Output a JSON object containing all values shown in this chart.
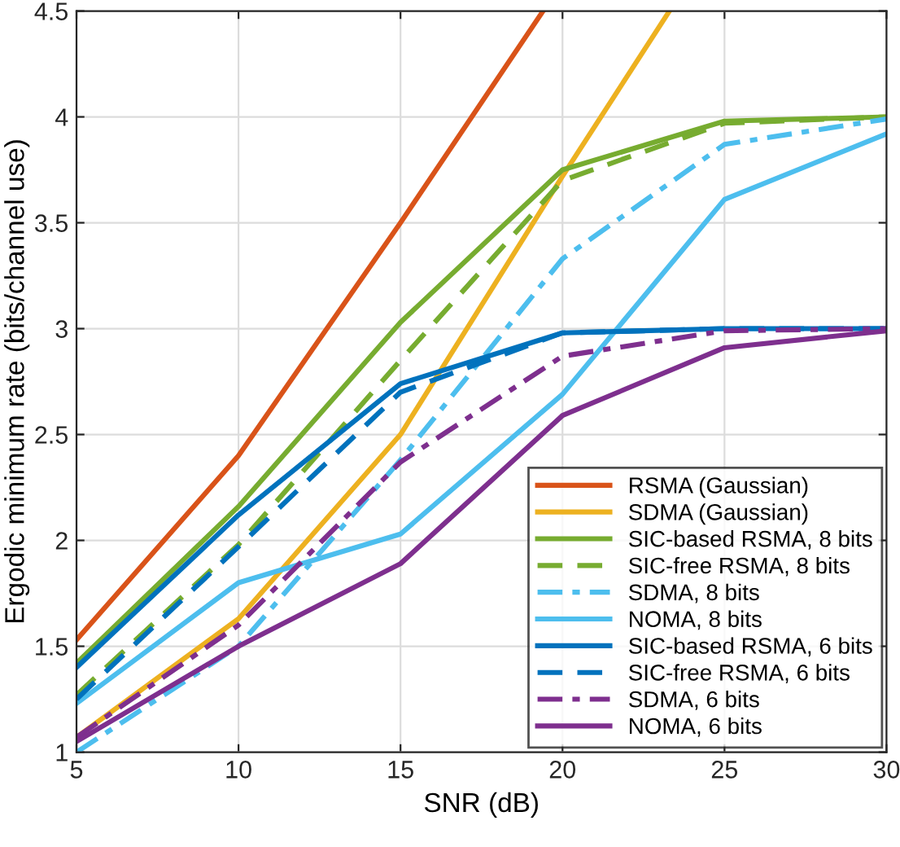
{
  "chart_data": {
    "type": "line",
    "xlabel": "SNR (dB)",
    "ylabel": "Ergodic minimum rate (bits/channel use)",
    "x": [
      5,
      10,
      15,
      20,
      25,
      30
    ],
    "xlim": [
      5,
      30
    ],
    "ylim": [
      1,
      4.5
    ],
    "xticks": [
      5,
      10,
      15,
      20,
      25,
      30
    ],
    "yticks": [
      1,
      1.5,
      2,
      2.5,
      3,
      3.5,
      4,
      4.5
    ],
    "grid": true,
    "legend": "bottom right",
    "marker": "none",
    "series": [
      {
        "name": "RSMA (Gaussian)",
        "color": "#d95319",
        "line_style": "solid",
        "x": [
          5,
          10,
          15,
          19.4
        ],
        "values": [
          1.53,
          2.4,
          3.5,
          4.5
        ]
      },
      {
        "name": "SDMA (Gaussian)",
        "color": "#edb120",
        "line_style": "solid",
        "x": [
          5,
          10,
          15,
          20,
          23.3
        ],
        "values": [
          1.07,
          1.63,
          2.5,
          3.72,
          4.5
        ]
      },
      {
        "name": "SIC-based RSMA, 8 bits",
        "color": "#77ac30",
        "line_style": "solid",
        "values": [
          1.42,
          2.16,
          3.03,
          3.75,
          3.98,
          4.0
        ]
      },
      {
        "name": "SIC-free RSMA, 8 bits",
        "color": "#77ac30",
        "line_style": "dashed",
        "values": [
          1.27,
          1.98,
          2.85,
          3.7,
          3.97,
          4.0
        ]
      },
      {
        "name": "SDMA, 8 bits",
        "color": "#4dbeee",
        "line_style": "dashdot",
        "values": [
          1.0,
          1.5,
          2.38,
          3.33,
          3.87,
          3.99
        ]
      },
      {
        "name": "NOMA, 8 bits",
        "color": "#4dbeee",
        "line_style": "solid",
        "values": [
          1.23,
          1.8,
          2.03,
          2.69,
          3.61,
          3.92
        ]
      },
      {
        "name": "SIC-based RSMA, 6 bits",
        "color": "#0072bd",
        "line_style": "solid",
        "values": [
          1.4,
          2.12,
          2.74,
          2.98,
          3.0,
          3.0
        ]
      },
      {
        "name": "SIC-free RSMA, 6 bits",
        "color": "#0072bd",
        "line_style": "dashed",
        "values": [
          1.25,
          1.97,
          2.7,
          2.98,
          3.0,
          3.0
        ]
      },
      {
        "name": "SDMA, 6 bits",
        "color": "#7e2f8e",
        "line_style": "dashdot",
        "values": [
          1.07,
          1.6,
          2.37,
          2.87,
          2.99,
          3.0
        ]
      },
      {
        "name": "NOMA, 6 bits",
        "color": "#7e2f8e",
        "line_style": "solid",
        "values": [
          1.05,
          1.5,
          1.89,
          2.59,
          2.91,
          2.99
        ]
      }
    ]
  }
}
